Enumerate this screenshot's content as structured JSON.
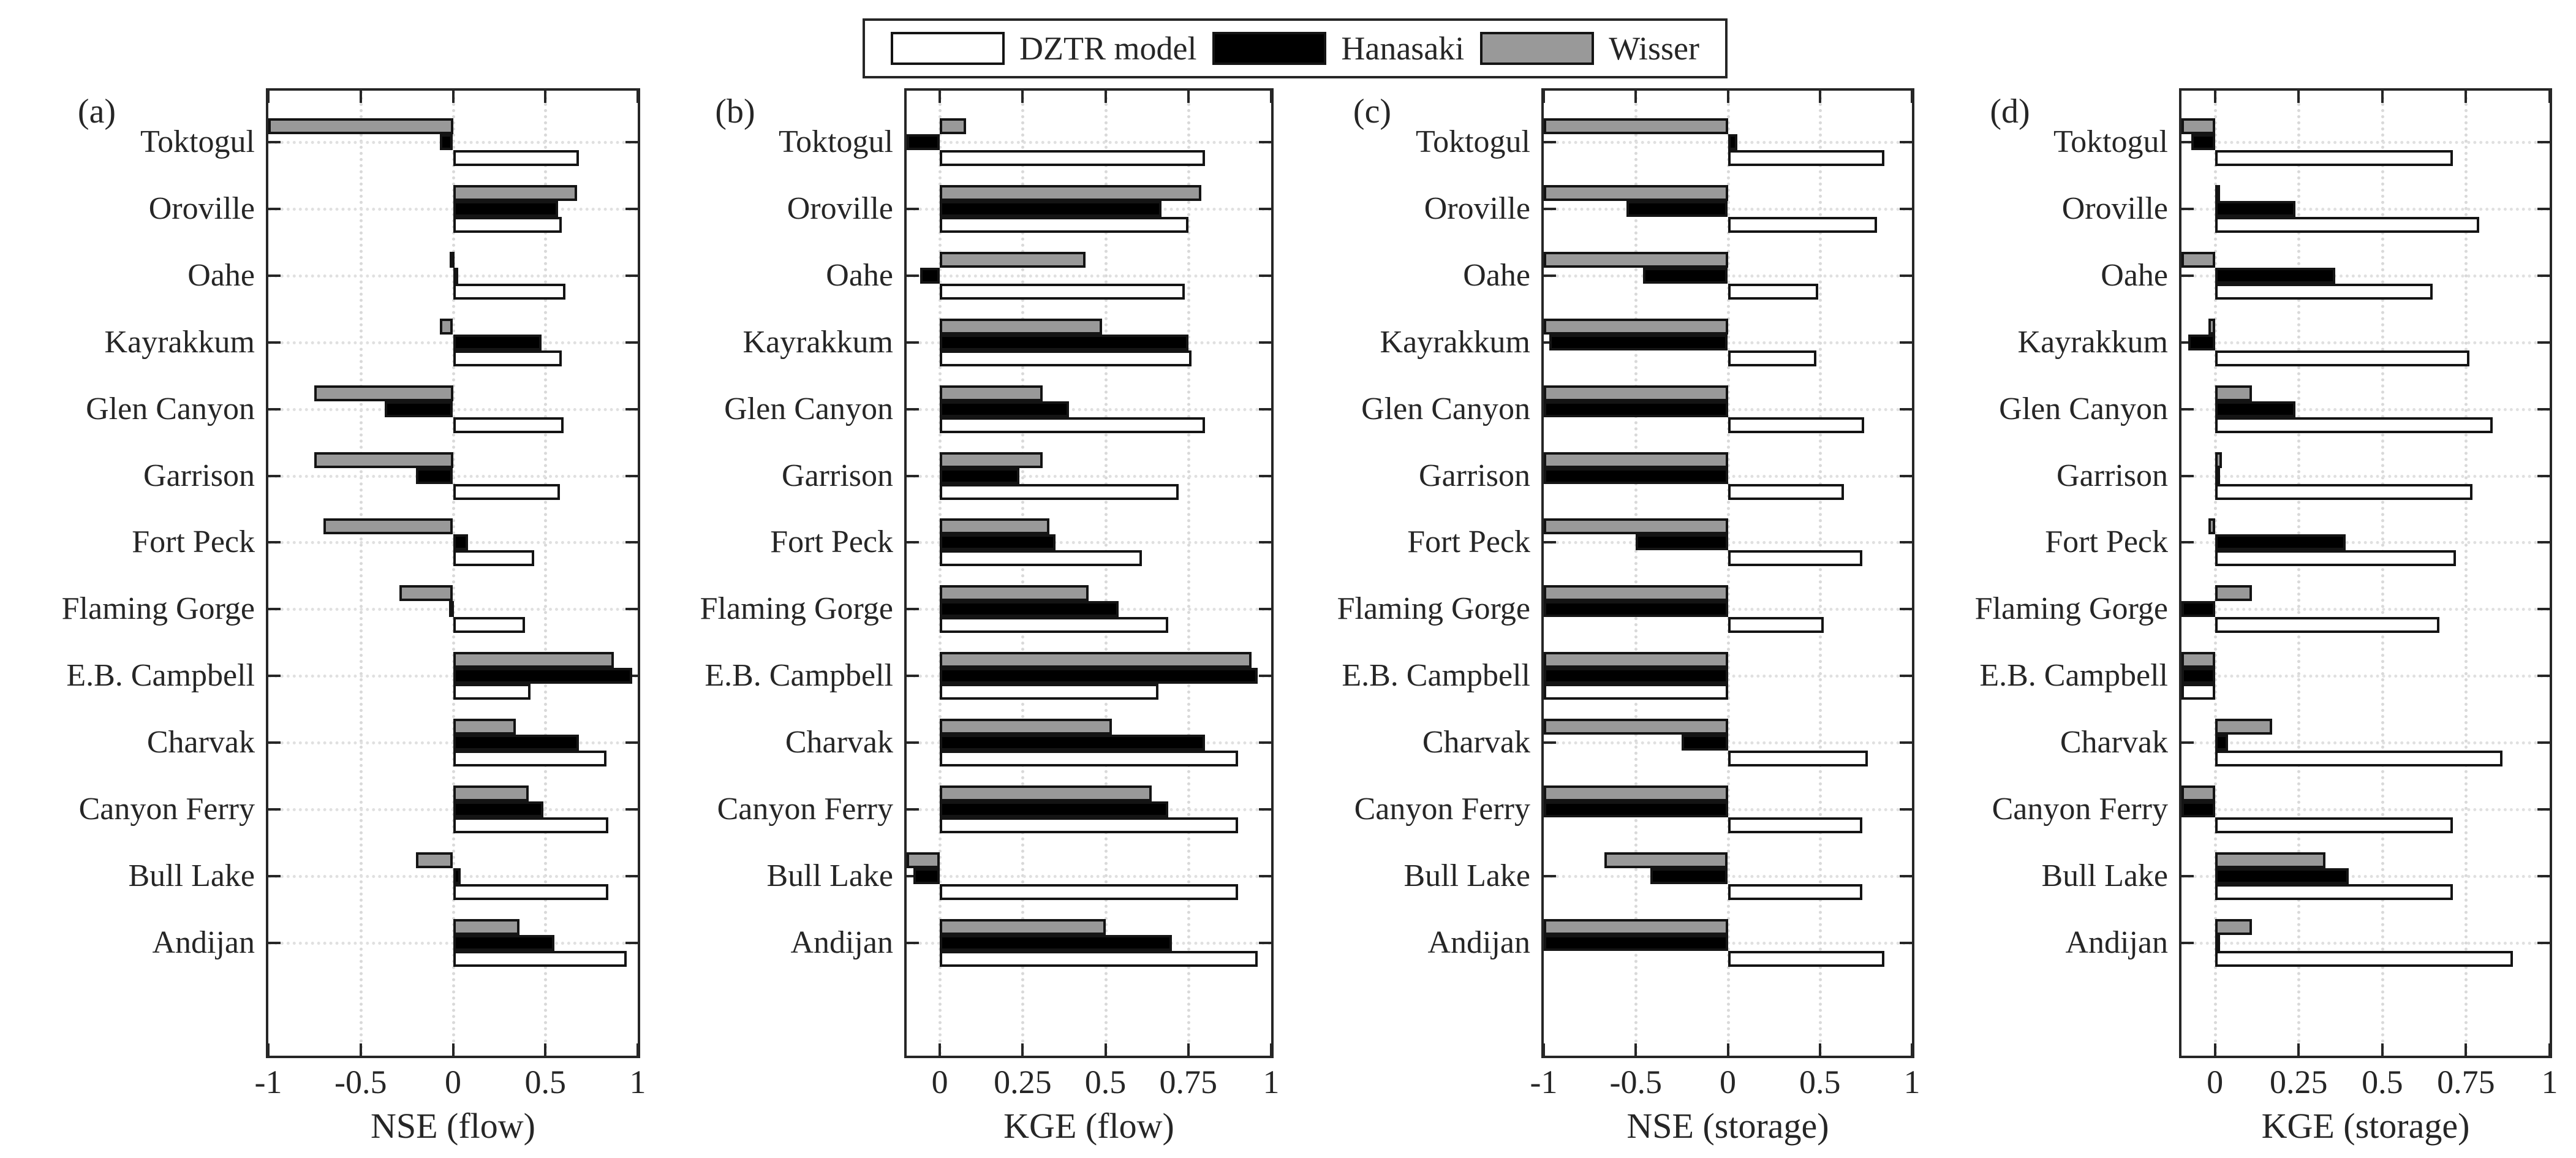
{
  "figure_title": "",
  "colors": {
    "dztr": "#ffffff",
    "hanasaki": "#000000",
    "wisser": "#999999",
    "axis": "#262626",
    "bar_edge": "#141414",
    "grid": "#dcdcdc",
    "background": "#ffffff"
  },
  "legend": {
    "items": [
      {
        "label": "DZTR model",
        "color": "#ffffff"
      },
      {
        "label": "Hanasaki",
        "color": "#000000"
      },
      {
        "label": "Wisser",
        "color": "#999999"
      }
    ]
  },
  "chart_data": [
    {
      "type": "bar",
      "orientation": "horizontal",
      "panel_label": "(a)",
      "xlabel": "NSE (flow)",
      "xlim": [
        -1,
        1
      ],
      "xticks": [
        -1,
        -0.5,
        0,
        0.5,
        1
      ],
      "xtick_labels": [
        "-1",
        "-0.5",
        "0",
        "0.5",
        "1"
      ],
      "grid": "dotted",
      "legend_position": "top-center-shared",
      "note": "bars extending to the left axis edge are clipped at the axis minimum",
      "categories": [
        "Toktogul",
        "Oroville",
        "Oahe",
        "Kayrakkum",
        "Glen Canyon",
        "Garrison",
        "Fort Peck",
        "Flaming Gorge",
        "E.B. Campbell",
        "Charvak",
        "Canyon Ferry",
        "Bull Lake",
        "Andijan"
      ],
      "series": [
        {
          "name": "DZTR model",
          "values": [
            0.68,
            0.59,
            0.61,
            0.59,
            0.6,
            0.58,
            0.44,
            0.39,
            0.42,
            0.83,
            0.84,
            0.84,
            0.94
          ]
        },
        {
          "name": "Hanasaki",
          "values": [
            -0.07,
            0.57,
            0.01,
            0.48,
            -0.37,
            -0.2,
            0.08,
            -0.02,
            0.97,
            0.68,
            0.49,
            0.04,
            0.55
          ]
        },
        {
          "name": "Wisser",
          "values": [
            -1.0,
            0.67,
            -0.01,
            -0.07,
            -0.75,
            -0.75,
            -0.7,
            -0.29,
            0.87,
            0.34,
            0.41,
            -0.2,
            0.36
          ]
        }
      ]
    },
    {
      "type": "bar",
      "orientation": "horizontal",
      "panel_label": "(b)",
      "xlabel": "KGE (flow)",
      "xlim": [
        -0.1,
        1
      ],
      "xticks": [
        0,
        0.25,
        0.5,
        0.75,
        1
      ],
      "xtick_labels": [
        "0",
        "0.25",
        "0.5",
        "0.75",
        "1"
      ],
      "grid": "dotted",
      "note": "bars extending to the left axis edge are clipped at the axis minimum",
      "categories": [
        "Toktogul",
        "Oroville",
        "Oahe",
        "Kayrakkum",
        "Glen Canyon",
        "Garrison",
        "Fort Peck",
        "Flaming Gorge",
        "E.B. Campbell",
        "Charvak",
        "Canyon Ferry",
        "Bull Lake",
        "Andijan"
      ],
      "series": [
        {
          "name": "DZTR model",
          "values": [
            0.8,
            0.75,
            0.74,
            0.76,
            0.8,
            0.72,
            0.61,
            0.69,
            0.66,
            0.9,
            0.9,
            0.9,
            0.96
          ]
        },
        {
          "name": "Hanasaki",
          "values": [
            -0.1,
            0.67,
            -0.06,
            0.75,
            0.39,
            0.24,
            0.35,
            0.54,
            0.96,
            0.8,
            0.69,
            -0.08,
            0.7
          ]
        },
        {
          "name": "Wisser",
          "values": [
            0.08,
            0.79,
            0.44,
            0.49,
            0.31,
            0.31,
            0.33,
            0.45,
            0.94,
            0.52,
            0.64,
            -0.1,
            0.5
          ]
        }
      ]
    },
    {
      "type": "bar",
      "orientation": "horizontal",
      "panel_label": "(c)",
      "xlabel": "NSE (storage)",
      "xlim": [
        -1,
        1
      ],
      "xticks": [
        -1,
        -0.5,
        0,
        0.5,
        1
      ],
      "xtick_labels": [
        "-1",
        "-0.5",
        "0",
        "0.5",
        "1"
      ],
      "grid": "dotted",
      "note": "bars extending to the left axis edge are clipped at the axis minimum",
      "categories": [
        "Toktogul",
        "Oroville",
        "Oahe",
        "Kayrakkum",
        "Glen Canyon",
        "Garrison",
        "Fort Peck",
        "Flaming Gorge",
        "E.B. Campbell",
        "Charvak",
        "Canyon Ferry",
        "Bull Lake",
        "Andijan"
      ],
      "series": [
        {
          "name": "DZTR model",
          "values": [
            0.85,
            0.81,
            0.49,
            0.48,
            0.74,
            0.63,
            0.73,
            0.52,
            -1.0,
            0.76,
            0.73,
            0.73,
            0.85
          ]
        },
        {
          "name": "Hanasaki",
          "values": [
            0.05,
            -0.55,
            -0.46,
            -0.97,
            -1.0,
            -1.0,
            -0.5,
            -1.0,
            -1.0,
            -0.25,
            -1.0,
            -0.42,
            -1.0
          ]
        },
        {
          "name": "Wisser",
          "values": [
            -1.0,
            -1.0,
            -1.0,
            -1.0,
            -1.0,
            -1.0,
            -1.0,
            -1.0,
            -1.0,
            -1.0,
            -1.0,
            -0.67,
            -1.0
          ]
        }
      ]
    },
    {
      "type": "bar",
      "orientation": "horizontal",
      "panel_label": "(d)",
      "xlabel": "KGE (storage)",
      "xlim": [
        -0.1,
        1
      ],
      "xticks": [
        0,
        0.25,
        0.5,
        0.75,
        1
      ],
      "xtick_labels": [
        "0",
        "0.25",
        "0.5",
        "0.75",
        "1"
      ],
      "grid": "dotted",
      "note": "bars extending to the left axis edge are clipped at the axis minimum",
      "categories": [
        "Toktogul",
        "Oroville",
        "Oahe",
        "Kayrakkum",
        "Glen Canyon",
        "Garrison",
        "Fort Peck",
        "Flaming Gorge",
        "E.B. Campbell",
        "Charvak",
        "Canyon Ferry",
        "Bull Lake",
        "Andijan"
      ],
      "series": [
        {
          "name": "DZTR model",
          "values": [
            0.71,
            0.79,
            0.65,
            0.76,
            0.83,
            0.77,
            0.72,
            0.67,
            -0.1,
            0.86,
            0.71,
            0.71,
            0.89
          ]
        },
        {
          "name": "Hanasaki",
          "values": [
            -0.07,
            0.24,
            0.36,
            -0.08,
            0.24,
            0.01,
            0.39,
            -0.1,
            -0.1,
            0.04,
            -0.1,
            0.4,
            0.01
          ]
        },
        {
          "name": "Wisser",
          "values": [
            -0.1,
            0.01,
            -0.1,
            -0.02,
            0.11,
            0.02,
            -0.02,
            0.11,
            -0.1,
            0.17,
            -0.1,
            0.33,
            0.11
          ]
        }
      ]
    }
  ]
}
